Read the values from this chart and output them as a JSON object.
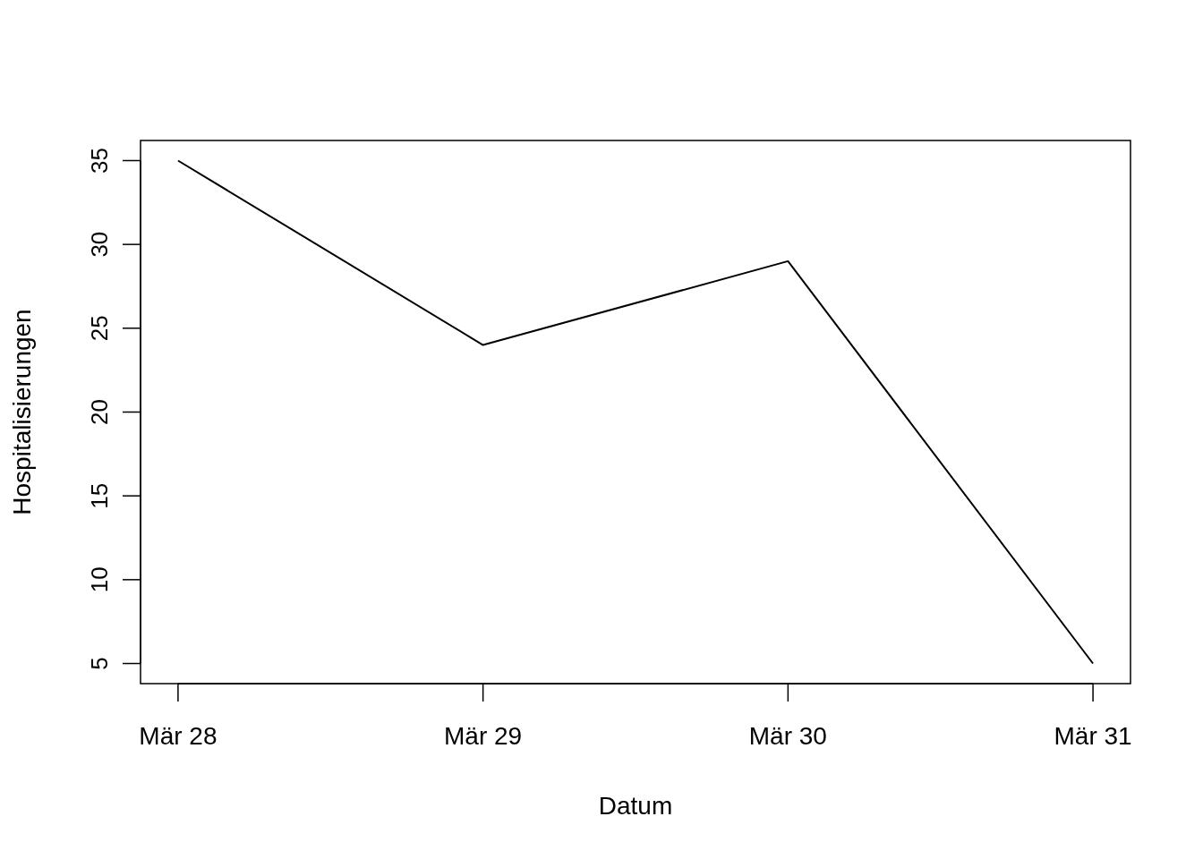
{
  "chart_data": {
    "type": "line",
    "xlabel": "Datum",
    "ylabel": "Hospitalisierungen",
    "categories": [
      "Mär 28",
      "Mär 29",
      "Mär 30",
      "Mär 31"
    ],
    "series": [
      {
        "color": "#000000",
        "values": [
          35,
          24,
          29,
          5
        ]
      }
    ],
    "ylim": [
      3.8,
      36.2
    ],
    "yticks": [
      5,
      10,
      15,
      20,
      25,
      30,
      35
    ],
    "grid": false,
    "marker": "none",
    "line_style": "solid"
  }
}
